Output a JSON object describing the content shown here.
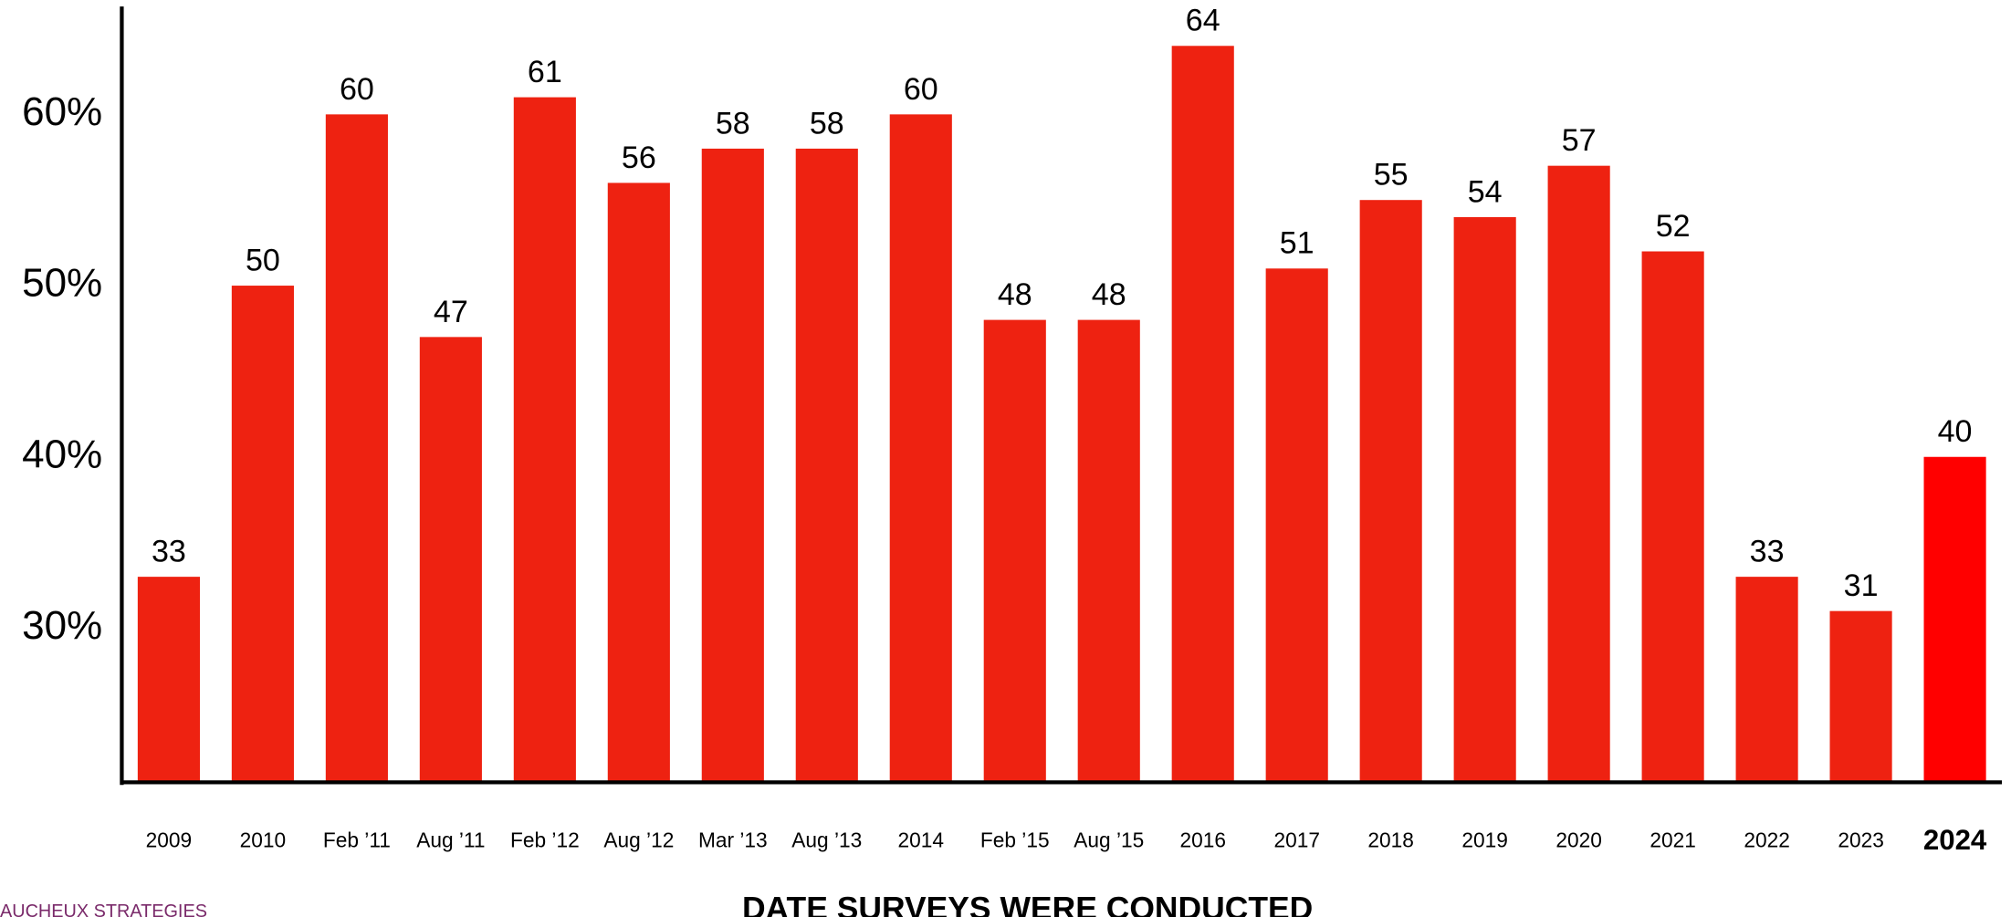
{
  "chart_data": {
    "type": "bar",
    "x_label": "DATE SURVEYS WERE CONDUCTED",
    "source": "AUCHEUX STRATEGIES",
    "categories": [
      "2009",
      "2010",
      "Feb ’11",
      "Aug ’11",
      "Feb ’12",
      "Aug ’12",
      "Mar ’13",
      "Aug ’13",
      "2014",
      "Feb ’15",
      "Aug ’15",
      "2016",
      "2017",
      "2018",
      "2019",
      "2020",
      "2021",
      "2022",
      "2023",
      "2024"
    ],
    "values": [
      33,
      50,
      60,
      47,
      61,
      56,
      58,
      58,
      60,
      48,
      48,
      64,
      51,
      55,
      54,
      57,
      52,
      33,
      31,
      40
    ],
    "colors": [
      "#ee2211",
      "#ee2211",
      "#ee2211",
      "#ee2211",
      "#ee2211",
      "#ee2211",
      "#ee2211",
      "#ee2211",
      "#ee2211",
      "#ee2211",
      "#ee2211",
      "#ee2211",
      "#ee2211",
      "#ee2211",
      "#ee2211",
      "#ee2211",
      "#ee2211",
      "#ee2211",
      "#ee2211",
      "#ff0000"
    ],
    "ylim": [
      21,
      66.3
    ],
    "yticks": [
      {
        "value": 30,
        "label": "30%"
      },
      {
        "value": 40,
        "label": "40%"
      },
      {
        "value": 50,
        "label": "50%"
      },
      {
        "value": 60,
        "label": "60%"
      }
    ],
    "grid": false
  }
}
